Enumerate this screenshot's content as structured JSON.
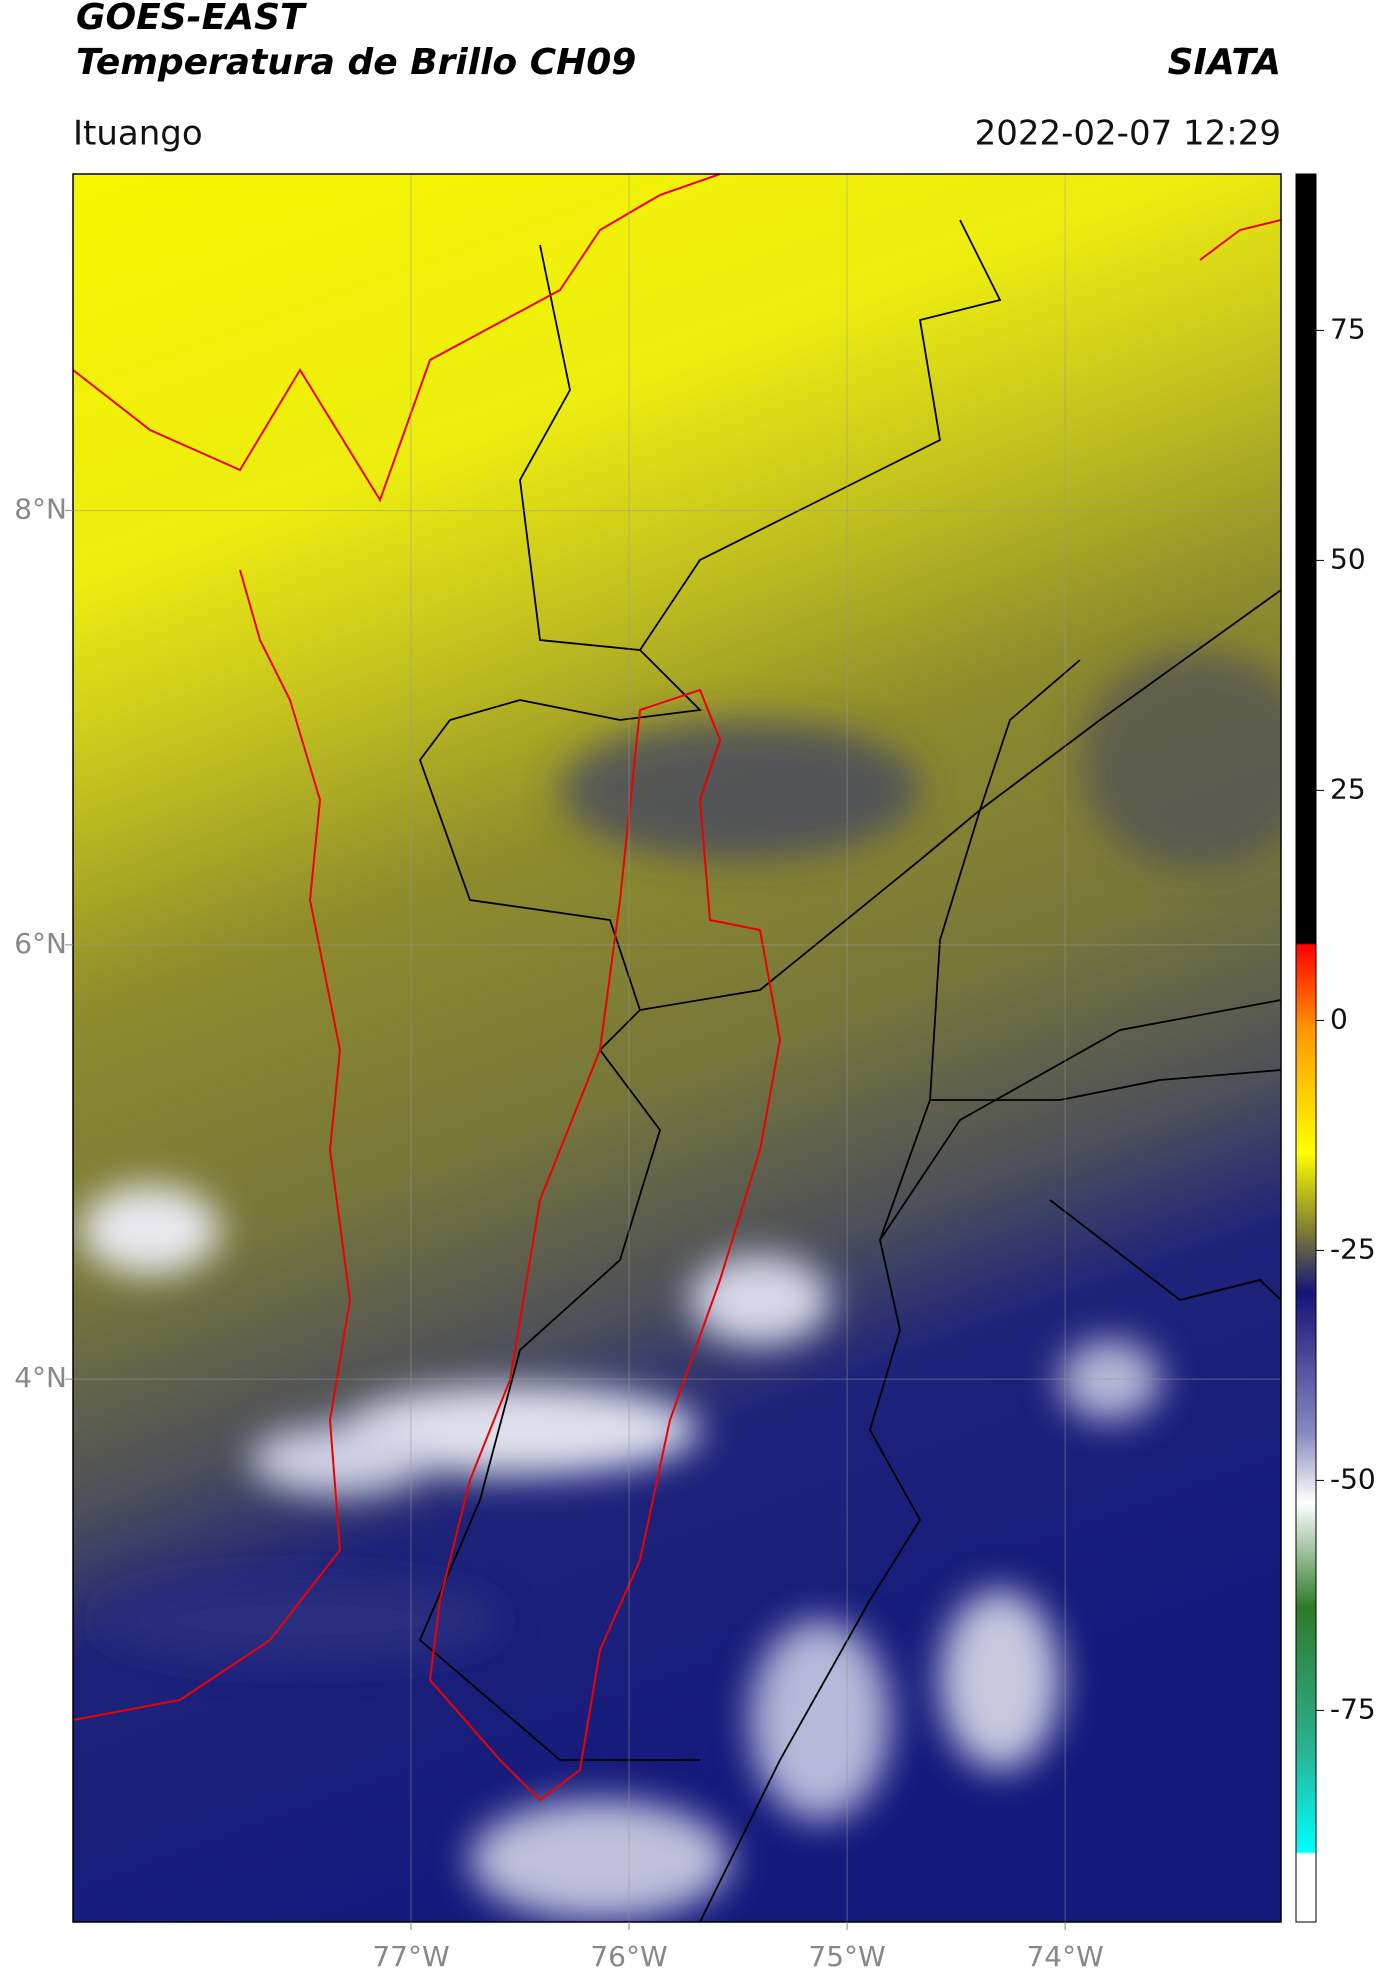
{
  "header": {
    "title": "GOES-EAST",
    "subtitle": "Temperatura de Brillo CH09",
    "source": "SIATA",
    "location": "Ituango",
    "datetime": "2022-02-07 12:29"
  },
  "map": {
    "xlim": [
      -78.55,
      -73.01
    ],
    "ylim": [
      1.5,
      9.55
    ],
    "xticks": [
      {
        "value": -77,
        "label": "77°W"
      },
      {
        "value": -76,
        "label": "76°W"
      },
      {
        "value": -75,
        "label": "75°W"
      },
      {
        "value": -74,
        "label": "74°W"
      }
    ],
    "yticks": [
      {
        "value": 8,
        "label": "8°N"
      },
      {
        "value": 6,
        "label": "6°N"
      },
      {
        "value": 4,
        "label": "4°N"
      }
    ]
  },
  "colorbar": {
    "lim": [
      -98,
      92
    ],
    "ticks": [
      75,
      50,
      25,
      0,
      -25,
      -50,
      -75
    ]
  }
}
